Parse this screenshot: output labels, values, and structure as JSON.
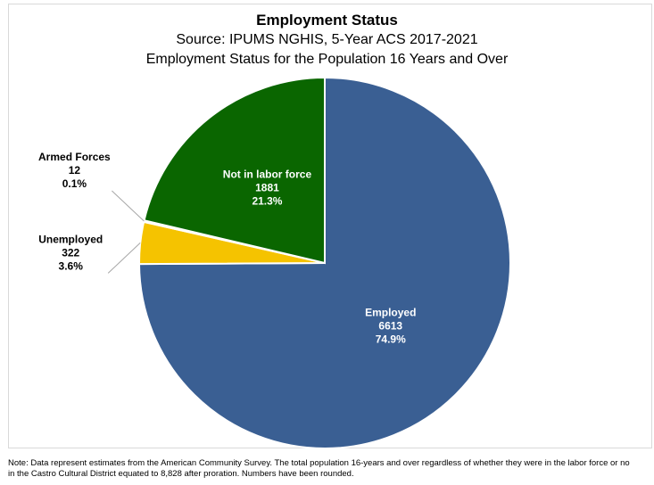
{
  "chart_data": {
    "type": "pie",
    "title": "Employment Status",
    "subtitle": "Source: IPUMS NGHIS, 5-Year ACS 2017-2021",
    "subtitle2": "Employment Status for the Population 16 Years and Over",
    "slices": [
      {
        "name": "Employed",
        "value": 6613,
        "percent": "74.9%",
        "color": "#3a5f93",
        "label_color": "#ffffff"
      },
      {
        "name": "Unemployed",
        "value": 322,
        "percent": "3.6%",
        "color": "#f5c300",
        "label_color": "#000000"
      },
      {
        "name": "Armed Forces",
        "value": 12,
        "percent": "0.1%",
        "color": "#d9d9d9",
        "label_color": "#000000"
      },
      {
        "name": "Not in labor force",
        "value": 1881,
        "percent": "21.3%",
        "color": "#0a6600",
        "label_color": "#ffffff"
      }
    ],
    "total": 8828
  },
  "note": {
    "line1": "Note: Data represent estimates from the American Community Survey. The total population 16-years and over regardless of whether they were in the labor force or no",
    "line2": "in the Castro Cultural District equated to 8,828 after proration. Numbers have been rounded."
  }
}
